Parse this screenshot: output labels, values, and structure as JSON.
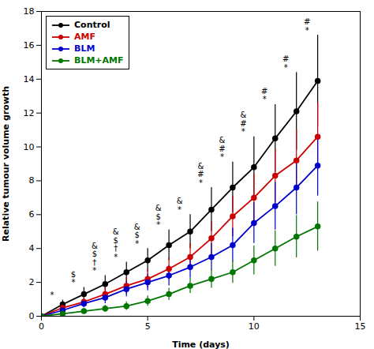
{
  "chart_data": {
    "type": "line",
    "x": [
      0,
      1,
      2,
      3,
      4,
      5,
      6,
      7,
      8,
      9,
      10,
      11,
      12,
      13,
      14
    ],
    "series": [
      {
        "name": "Control",
        "color": "#000000",
        "values": [
          0.0,
          0.7,
          1.3,
          1.9,
          2.6,
          3.3,
          4.2,
          5.0,
          6.3,
          7.6,
          8.8,
          10.5,
          12.1,
          13.9,
          null
        ],
        "yerr": [
          0.0,
          0.25,
          0.4,
          0.5,
          0.6,
          0.7,
          0.9,
          1.0,
          1.3,
          1.5,
          1.8,
          2.0,
          2.3,
          2.7,
          null
        ]
      },
      {
        "name": "AMF",
        "color": "#cc0000",
        "values": [
          0.0,
          0.5,
          0.85,
          1.3,
          1.8,
          2.2,
          2.8,
          3.5,
          4.6,
          5.9,
          7.0,
          8.3,
          9.2,
          10.6,
          null
        ],
        "yerr": [
          0.0,
          0.2,
          0.3,
          0.4,
          0.5,
          0.55,
          0.65,
          0.8,
          1.0,
          1.2,
          1.4,
          1.6,
          1.8,
          2.0,
          null
        ]
      },
      {
        "name": "BLM",
        "color": "#0000cc",
        "values": [
          0.0,
          0.35,
          0.75,
          1.1,
          1.6,
          2.0,
          2.4,
          2.9,
          3.5,
          4.2,
          5.5,
          6.5,
          7.6,
          8.9,
          null
        ],
        "yerr": [
          0.0,
          0.2,
          0.25,
          0.35,
          0.45,
          0.5,
          0.6,
          0.65,
          0.8,
          1.0,
          1.2,
          1.4,
          1.6,
          1.8,
          null
        ]
      },
      {
        "name": "BLM+AMF",
        "color": "#007700",
        "values": [
          0.0,
          0.15,
          0.3,
          0.45,
          0.6,
          0.9,
          1.3,
          1.8,
          2.2,
          2.6,
          3.3,
          4.0,
          4.7,
          5.3,
          null
        ],
        "yerr": [
          0.0,
          0.1,
          0.15,
          0.2,
          0.25,
          0.3,
          0.35,
          0.45,
          0.55,
          0.65,
          0.85,
          1.05,
          1.25,
          1.45,
          null
        ]
      }
    ],
    "annotations": [
      {
        "x": 1,
        "text": "*"
      },
      {
        "x": 2,
        "text": "$\n*"
      },
      {
        "x": 3,
        "text": "&\n$\n†\n*"
      },
      {
        "x": 4,
        "text": "&\n$\n†\n*"
      },
      {
        "x": 5,
        "text": "&\n$\n*"
      },
      {
        "x": 6,
        "text": "&\n$\n*"
      },
      {
        "x": 7,
        "text": "&\n*"
      },
      {
        "x": 8,
        "text": "&\n#\n*"
      },
      {
        "x": 9,
        "text": "&\n#\n*"
      },
      {
        "x": 10,
        "text": "&\n#\n*"
      },
      {
        "x": 11,
        "text": "#\n*"
      },
      {
        "x": 12,
        "text": "#\n*"
      },
      {
        "x": 13,
        "text": "#\n*"
      }
    ],
    "xlabel": "Time (days)",
    "ylabel": "Relative tumour volume growth",
    "xlim": [
      0,
      15
    ],
    "ylim": [
      0,
      18
    ],
    "xticks": [
      0,
      5,
      10,
      15
    ],
    "yticks": [
      0,
      2,
      4,
      6,
      8,
      10,
      12,
      14,
      16,
      18
    ],
    "legend": "upper left",
    "grid": false,
    "marker": "circle"
  }
}
